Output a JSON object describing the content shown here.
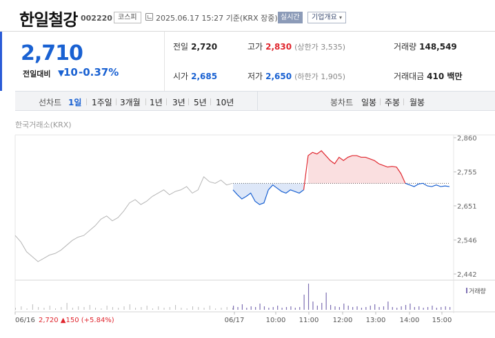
{
  "header": {
    "name": "한일철강",
    "code": "002220",
    "market": "코스피",
    "timestamp": "2025.06.17 15:27 기준(KRX 장중)",
    "realtime": "실시간",
    "company_overview": "기업개요"
  },
  "price": {
    "current": "2,710",
    "change_label": "전일대비",
    "change_value": "10",
    "change_rate": "-0.37%"
  },
  "stats": {
    "prev_close_label": "전일",
    "prev_close": "2,720",
    "high_label": "고가",
    "high": "2,830",
    "upper_limit": "(상한가 3,535)",
    "volume_label": "거래량",
    "volume": "148,549",
    "open_label": "시가",
    "open": "2,685",
    "low_label": "저가",
    "low": "2,650",
    "lower_limit": "(하한가 1,905)",
    "amount_label": "거래대금",
    "amount": "410 백만"
  },
  "periods": {
    "line_label": "선차트",
    "line_items": [
      "1일",
      "1주일",
      "3개월",
      "1년",
      "3년",
      "5년",
      "10년"
    ],
    "active": "1일",
    "candle_label": "봉차트",
    "candle_items": [
      "일봉",
      "주봉",
      "월봉"
    ]
  },
  "exchange": "한국거래소(KRX)",
  "colors": {
    "up": "#e0262e",
    "down": "#1961d2",
    "prev_day": "#b5b5b5",
    "volume": "#7d6fb3"
  },
  "chart_data": {
    "type": "line",
    "reference_price": 2720,
    "ylim": [
      2442,
      2860
    ],
    "y_ticks": [
      "2,860",
      "2,755",
      "2,651",
      "2,546",
      "2,442"
    ],
    "y_tick_values": [
      2860,
      2755,
      2651,
      2546,
      2442
    ],
    "x_ticks": [
      "06/16",
      "06/17",
      "10:00",
      "11:00",
      "12:00",
      "13:00",
      "14:00",
      "15:00"
    ],
    "volume_legend": "거래량",
    "prev_day_note": "2,720 ▲150 (+5.84%)",
    "prev_day_series": [
      2560,
      2540,
      2510,
      2495,
      2480,
      2490,
      2500,
      2505,
      2515,
      2530,
      2545,
      2555,
      2560,
      2575,
      2590,
      2610,
      2620,
      2605,
      2615,
      2635,
      2660,
      2670,
      2655,
      2665,
      2680,
      2690,
      2700,
      2685,
      2695,
      2700,
      2710,
      2690,
      2700,
      2740,
      2725,
      2720,
      2730,
      2715,
      2720
    ],
    "today_series": [
      2700,
      2685,
      2672,
      2680,
      2690,
      2665,
      2655,
      2660,
      2700,
      2715,
      2705,
      2695,
      2690,
      2700,
      2695,
      2690,
      2700,
      2805,
      2815,
      2810,
      2820,
      2805,
      2790,
      2780,
      2800,
      2790,
      2800,
      2805,
      2805,
      2800,
      2800,
      2795,
      2790,
      2780,
      2775,
      2770,
      2772,
      2770,
      2750,
      2720,
      2715,
      2710,
      2718,
      2720,
      2712,
      2710,
      2715,
      2710,
      2712,
      2710
    ],
    "prev_day_volume": [
      3,
      5,
      2,
      8,
      4,
      3,
      6,
      2,
      4,
      10,
      3,
      5,
      4,
      7,
      3,
      2,
      6,
      4,
      3,
      5,
      8,
      3,
      4,
      6,
      2,
      5,
      3,
      4,
      7,
      3,
      2,
      5,
      4,
      3,
      6,
      2,
      3,
      4,
      3
    ],
    "today_volume": [
      6,
      4,
      8,
      3,
      5,
      4,
      9,
      5,
      3,
      4,
      6,
      3,
      4,
      5,
      3,
      4,
      22,
      38,
      12,
      6,
      10,
      25,
      7,
      5,
      4,
      9,
      6,
      4,
      5,
      3,
      4,
      6,
      8,
      4,
      5,
      12,
      4,
      3,
      5,
      7,
      9,
      4,
      5,
      3,
      4,
      6,
      3,
      4,
      5,
      4
    ]
  }
}
